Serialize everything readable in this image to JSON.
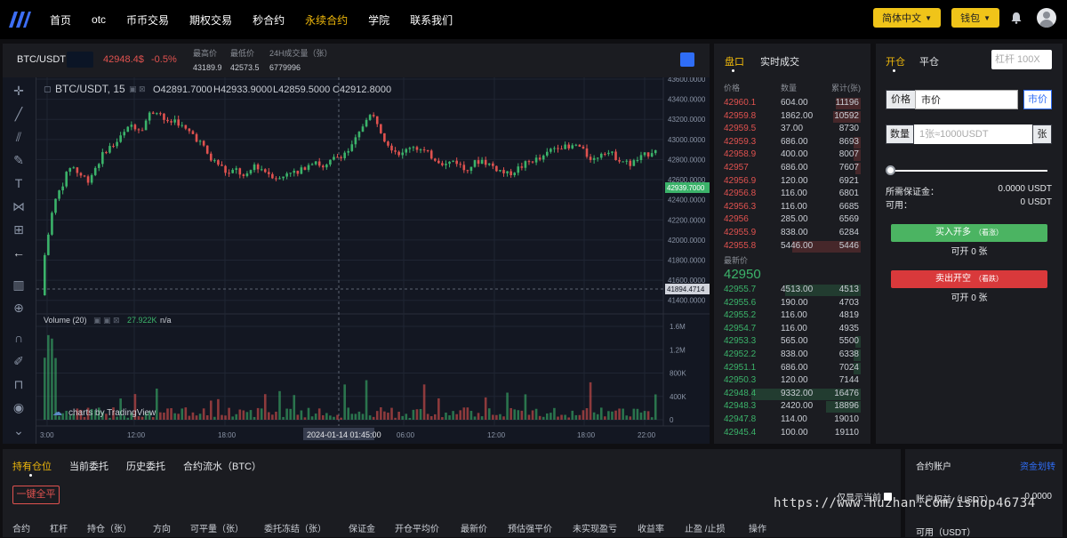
{
  "nav": {
    "items": [
      "首页",
      "otc",
      "币币交易",
      "期权交易",
      "秒合约",
      "永续合约",
      "学院",
      "联系我们"
    ],
    "active": "永续合约",
    "language": "简体中文",
    "wallet": "钱包"
  },
  "ticker": {
    "pair": "BTC/USDT",
    "price": "42948.4$",
    "change": "-0.5%",
    "high_label": "最高价",
    "high": "43189.9",
    "low_label": "最低价",
    "low": "42573.5",
    "vol_label": "24H成交量（张）",
    "vol": "6779996"
  },
  "chart": {
    "legend_title": "BTC/USDT, 15",
    "ohlc": {
      "o": "O42891.7000",
      "h": "H42933.9000",
      "l": "L42859.5000",
      "c": "C42912.8000"
    },
    "last_price_tag": "42939.7000",
    "cursor_price_tag": "41894.4714",
    "volume_label": "Volume (20)",
    "volume_value": "27.922K",
    "volume_na": "n/a",
    "watermark": "charts by TradingView",
    "cursor_time": "2024-01-14 01:45:00",
    "price_ticks": [
      "43600.0000",
      "43400.0000",
      "43200.0000",
      "43000.0000",
      "42800.0000",
      "42600.0000",
      "42400.0000",
      "42200.0000",
      "42000.0000",
      "41800.0000",
      "41600.0000",
      "41400.0000"
    ],
    "volume_ticks": [
      "1.6M",
      "1.2M",
      "800K",
      "400K",
      "0"
    ],
    "time_ticks": [
      "3:00",
      "12:00",
      "18:00",
      "06:00",
      "12:00",
      "18:00",
      "22:00"
    ]
  },
  "chart_data": {
    "type": "candlestick",
    "title": "BTC/USDT, 15",
    "ylim": [
      41300,
      43600
    ],
    "close": [
      41850,
      42350,
      42550,
      42750,
      42650,
      42600,
      42750,
      42900,
      42950,
      43050,
      43150,
      43100,
      43250,
      43300,
      43150,
      43200,
      43100,
      43050,
      42950,
      42800,
      42750,
      42650,
      42700,
      42600,
      42750,
      42700,
      42650,
      42600,
      42700,
      42650,
      42750,
      42800,
      42700,
      42800,
      42850,
      42900,
      43050,
      43250,
      43200,
      43000,
      42900,
      42850,
      42950,
      42900,
      42850,
      42800,
      42750,
      42800,
      42700,
      42750,
      42800,
      42750,
      42700,
      42650,
      42700,
      42750,
      42800,
      42800,
      42900,
      42950,
      42900,
      42950,
      42850,
      42800,
      42900,
      42850,
      42800,
      42750,
      42800,
      42850,
      42912
    ]
  },
  "book": {
    "tabs": [
      "盘口",
      "实时成交"
    ],
    "active_tab": "盘口",
    "headers": [
      "价格",
      "数量",
      "累计(张)"
    ],
    "asks": [
      [
        "42960.1",
        "604.00",
        "11196"
      ],
      [
        "42959.8",
        "1862.00",
        "10592"
      ],
      [
        "42959.5",
        "37.00",
        "8730"
      ],
      [
        "42959.3",
        "686.00",
        "8693"
      ],
      [
        "42958.9",
        "400.00",
        "8007"
      ],
      [
        "42957",
        "686.00",
        "7607"
      ],
      [
        "42956.9",
        "120.00",
        "6921"
      ],
      [
        "42956.8",
        "116.00",
        "6801"
      ],
      [
        "42956.3",
        "116.00",
        "6685"
      ],
      [
        "42956",
        "285.00",
        "6569"
      ],
      [
        "42955.9",
        "838.00",
        "6284"
      ],
      [
        "42955.8",
        "5446.00",
        "5446"
      ]
    ],
    "ask_depth": [
      0.18,
      0.2,
      0,
      0.05,
      0.05,
      0.04,
      0,
      0,
      0,
      0,
      0,
      0.5
    ],
    "mid_label": "最新价",
    "mid_price": "42950",
    "bids": [
      [
        "42955.7",
        "4513.00",
        "4513"
      ],
      [
        "42955.6",
        "190.00",
        "4703"
      ],
      [
        "42955.2",
        "116.00",
        "4819"
      ],
      [
        "42954.7",
        "116.00",
        "4935"
      ],
      [
        "42953.3",
        "565.00",
        "5500"
      ],
      [
        "42952.2",
        "838.00",
        "6338"
      ],
      [
        "42951.1",
        "686.00",
        "7024"
      ],
      [
        "42950.3",
        "120.00",
        "7144"
      ],
      [
        "42948.4",
        "9332.00",
        "16476"
      ],
      [
        "42948.3",
        "2420.00",
        "18896"
      ],
      [
        "42947.8",
        "114.00",
        "19010"
      ],
      [
        "42945.4",
        "100.00",
        "19110"
      ]
    ],
    "bid_depth": [
      0.55,
      0,
      0,
      0,
      0.04,
      0.05,
      0.05,
      0,
      0.8,
      0.25,
      0,
      0
    ]
  },
  "trade": {
    "tabs": [
      "开仓",
      "平仓"
    ],
    "active_tab": "开仓",
    "leverage_placeholder": "杠杆 100X",
    "price_label": "价格",
    "price_value": "市价",
    "price_suffix": "市价",
    "qty_label": "数量",
    "qty_placeholder": "1张≈1000USDT",
    "qty_suffix": "张",
    "slider_value": 0,
    "margin_label": "所需保证金：",
    "margin_value": "0.0000 USDT",
    "available_label": "可用：",
    "available_value": "0 USDT",
    "long_btn": "买入开多",
    "long_hint": "（看涨）",
    "long_avail": "可开 0 张",
    "short_btn": "卖出开空",
    "short_hint": "（看跌）",
    "short_avail": "可开 0 张"
  },
  "positions": {
    "tabs": [
      "持有仓位",
      "当前委托",
      "历史委托",
      "合约流水（BTC）"
    ],
    "active_tab": "持有仓位",
    "close_all": "一键全平",
    "only_current": "仅显示当前",
    "columns": [
      "合约",
      "杠杆",
      "持仓（张）",
      "方向",
      "可平量（张）",
      "委托冻结（张）",
      "保证金",
      "开仓平均价",
      "最新价",
      "预估强平价",
      "未实现盈亏",
      "收益率",
      "止盈 /止损",
      "操作"
    ]
  },
  "account": {
    "title": "合约账户",
    "transfer_link": "资金划转",
    "equity_label": "账户权益（USDT）",
    "equity_value": "0.0000",
    "available_label": "可用（USDT）"
  },
  "watermark": "https://www.huzhan.com/ishop46734",
  "colors": {
    "accent": "#f0b90b",
    "up": "#3bb36a",
    "down": "#e0524f",
    "link": "#2f6df6"
  }
}
